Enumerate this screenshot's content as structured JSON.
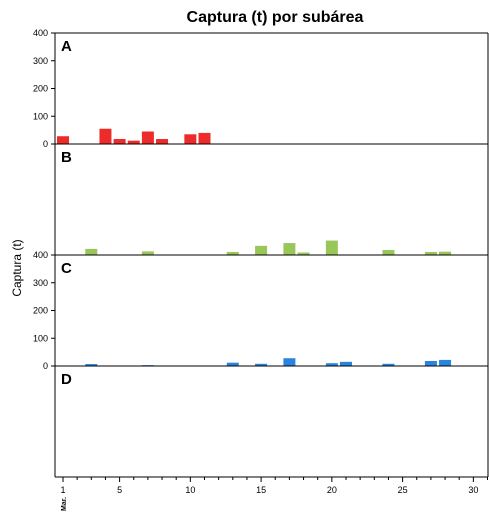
{
  "chart_data": {
    "type": "bar",
    "title": "Captura (t) por subárea",
    "ylabel": "Captura (t)",
    "xlabel": "",
    "xlim": [
      1,
      31
    ],
    "x_ticks": [
      "1",
      "5",
      "10",
      "15",
      "20",
      "25",
      "30"
    ],
    "x_tick_sublabel": "Mar.",
    "ylim": [
      0,
      400
    ],
    "y_ticks": [
      "0",
      "100",
      "200",
      "300",
      "400"
    ],
    "grid": false,
    "panels": [
      {
        "label": "A",
        "color": "#ee2b2b",
        "show_yticks": true,
        "x": [
          1,
          4,
          5,
          6,
          7,
          8,
          10,
          11
        ],
        "values": [
          28,
          55,
          18,
          12,
          45,
          18,
          35,
          40
        ]
      },
      {
        "label": "B",
        "color": "#99c659",
        "show_yticks": false,
        "x": [
          3,
          7,
          13,
          15,
          17,
          18,
          20,
          24,
          27,
          28
        ],
        "values": [
          22,
          13,
          11,
          33,
          43,
          9,
          52,
          18,
          11,
          12
        ]
      },
      {
        "label": "C",
        "color": "#2a83de",
        "show_yticks": true,
        "x": [
          3,
          7,
          13,
          15,
          17,
          20,
          21,
          24,
          27,
          28
        ],
        "values": [
          7,
          3,
          12,
          8,
          28,
          10,
          15,
          8,
          18,
          22
        ]
      },
      {
        "label": "D",
        "color": "#2a83de",
        "show_yticks": false,
        "x": [],
        "values": []
      }
    ]
  }
}
